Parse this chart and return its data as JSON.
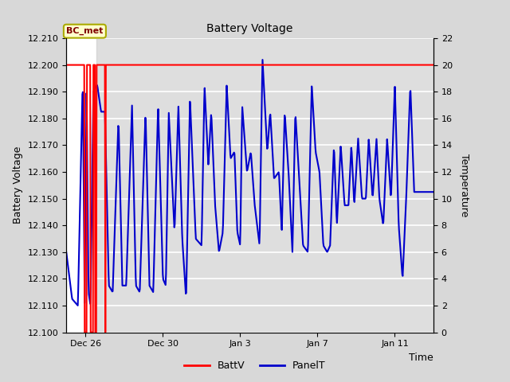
{
  "title": "Battery Voltage",
  "xlabel": "Time",
  "ylabel_left": "Battery Voltage",
  "ylabel_right": "Temperature",
  "ylim_left": [
    12.1,
    12.21
  ],
  "ylim_right": [
    0,
    22
  ],
  "yticks_left": [
    12.1,
    12.11,
    12.12,
    12.13,
    12.14,
    12.15,
    12.16,
    12.17,
    12.18,
    12.19,
    12.2,
    12.21
  ],
  "yticks_right": [
    0,
    2,
    4,
    6,
    8,
    10,
    12,
    14,
    16,
    18,
    20,
    22
  ],
  "bg_color": "#d8d8d8",
  "plot_bg_color": "#ffffff",
  "batt_v_color": "#ff0000",
  "panel_t_color": "#0000cc",
  "annotation_label": "BC_met",
  "batt_constant": 12.2,
  "legend_labels": [
    "BattV",
    "PanelT"
  ],
  "legend_colors": [
    "#ff0000",
    "#0000cc"
  ],
  "xtick_labels": [
    "Dec 26",
    "Dec 30",
    "Jan 3",
    "Jan 7",
    "Jan 11"
  ],
  "shade_color": "#c8c8c8",
  "grid_color": "#cccccc"
}
